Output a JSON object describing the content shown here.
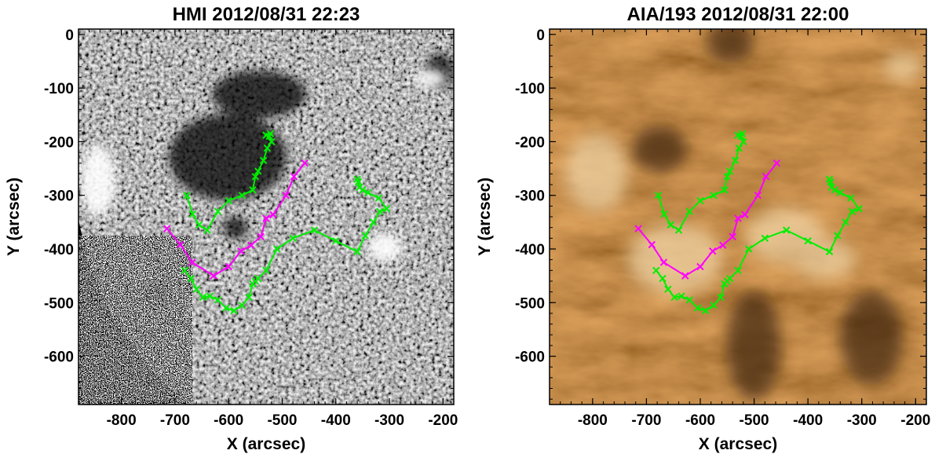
{
  "panels": [
    {
      "id": "hmi",
      "title": "HMI 2012/08/31 22:23",
      "image_kind": "magnetogram",
      "colors": {
        "background": "#8a8a8a",
        "positive": "#ffffff",
        "negative": "#000000"
      }
    },
    {
      "id": "aia",
      "title": "AIA/193 2012/08/31 22:00",
      "image_kind": "euv-193",
      "colors": {
        "background": "#a86a2a",
        "bright": "#f4dcb0",
        "dark": "#3a200a"
      }
    }
  ],
  "axes": {
    "xlabel": "X (arcsec)",
    "ylabel": "Y (arcsec)",
    "xlim": [
      -880,
      -180
    ],
    "ylim": [
      -690,
      10
    ],
    "xticks": [
      "-800",
      "-700",
      "-600",
      "-500",
      "-400",
      "-300",
      "-200"
    ],
    "yticks": [
      "0",
      "-100",
      "-200",
      "-300",
      "-400",
      "-500",
      "-600"
    ]
  },
  "chart_data": [
    {
      "type": "line",
      "title": "HMI 2012/08/31 22:23",
      "xlabel": "X (arcsec)",
      "ylabel": "Y (arcsec)",
      "xlim": [
        -880,
        -180
      ],
      "ylim": [
        -690,
        10
      ],
      "series": [
        {
          "color": "#ff00ff",
          "marker": "x",
          "x": [
            -715,
            -690,
            -668,
            -628,
            -600,
            -577,
            -558,
            -540,
            -530,
            -517,
            -493,
            -478,
            -458
          ],
          "y": [
            -362,
            -392,
            -425,
            -450,
            -433,
            -404,
            -393,
            -377,
            -343,
            -336,
            -300,
            -265,
            -240
          ]
        },
        {
          "color": "#00ee00",
          "marker": "x",
          "x": [
            -678,
            -667,
            -655,
            -640,
            -620,
            -600,
            -575,
            -555,
            -550,
            -545,
            -535,
            -528,
            -520,
            -524,
            -530,
            -522
          ],
          "y": [
            -300,
            -335,
            -355,
            -365,
            -330,
            -310,
            -300,
            -290,
            -265,
            -255,
            -235,
            -212,
            -200,
            -190,
            -188,
            -185
          ]
        },
        {
          "color": "#00ee00",
          "marker": "x",
          "x": [
            -682,
            -670,
            -660,
            -648,
            -635,
            -620,
            -605,
            -590,
            -575,
            -562,
            -555,
            -550,
            -545,
            -530,
            -510,
            -480,
            -440,
            -400,
            -360,
            -345,
            -330,
            -318,
            -305,
            -320,
            -340,
            -350,
            -356,
            -358,
            -360
          ],
          "y": [
            -440,
            -455,
            -475,
            -490,
            -488,
            -495,
            -510,
            -515,
            -505,
            -490,
            -465,
            -460,
            -455,
            -440,
            -400,
            -380,
            -365,
            -385,
            -405,
            -375,
            -350,
            -330,
            -325,
            -305,
            -295,
            -290,
            -285,
            -275,
            -270
          ]
        }
      ]
    },
    {
      "type": "line",
      "title": "AIA/193 2012/08/31 22:00",
      "xlabel": "X (arcsec)",
      "ylabel": "Y (arcsec)",
      "xlim": [
        -880,
        -180
      ],
      "ylim": [
        -690,
        10
      ],
      "series": [
        {
          "color": "#ff00ff",
          "marker": "x",
          "x": [
            -715,
            -690,
            -668,
            -628,
            -600,
            -577,
            -558,
            -540,
            -530,
            -517,
            -493,
            -478,
            -458
          ],
          "y": [
            -362,
            -392,
            -425,
            -450,
            -433,
            -404,
            -393,
            -377,
            -343,
            -336,
            -300,
            -265,
            -240
          ]
        },
        {
          "color": "#00ee00",
          "marker": "x",
          "x": [
            -678,
            -667,
            -655,
            -640,
            -620,
            -600,
            -575,
            -555,
            -550,
            -545,
            -535,
            -528,
            -520,
            -524,
            -530,
            -522
          ],
          "y": [
            -300,
            -335,
            -355,
            -365,
            -330,
            -310,
            -300,
            -290,
            -265,
            -255,
            -235,
            -212,
            -200,
            -190,
            -188,
            -185
          ]
        },
        {
          "color": "#00ee00",
          "marker": "x",
          "x": [
            -682,
            -670,
            -660,
            -648,
            -635,
            -620,
            -605,
            -590,
            -575,
            -562,
            -555,
            -550,
            -545,
            -530,
            -510,
            -480,
            -440,
            -400,
            -360,
            -345,
            -330,
            -318,
            -305,
            -320,
            -340,
            -350,
            -356,
            -358,
            -360
          ],
          "y": [
            -440,
            -455,
            -475,
            -490,
            -488,
            -495,
            -510,
            -515,
            -505,
            -490,
            -465,
            -460,
            -455,
            -440,
            -400,
            -380,
            -365,
            -385,
            -405,
            -375,
            -350,
            -330,
            -325,
            -305,
            -295,
            -290,
            -285,
            -275,
            -270
          ]
        }
      ]
    }
  ]
}
